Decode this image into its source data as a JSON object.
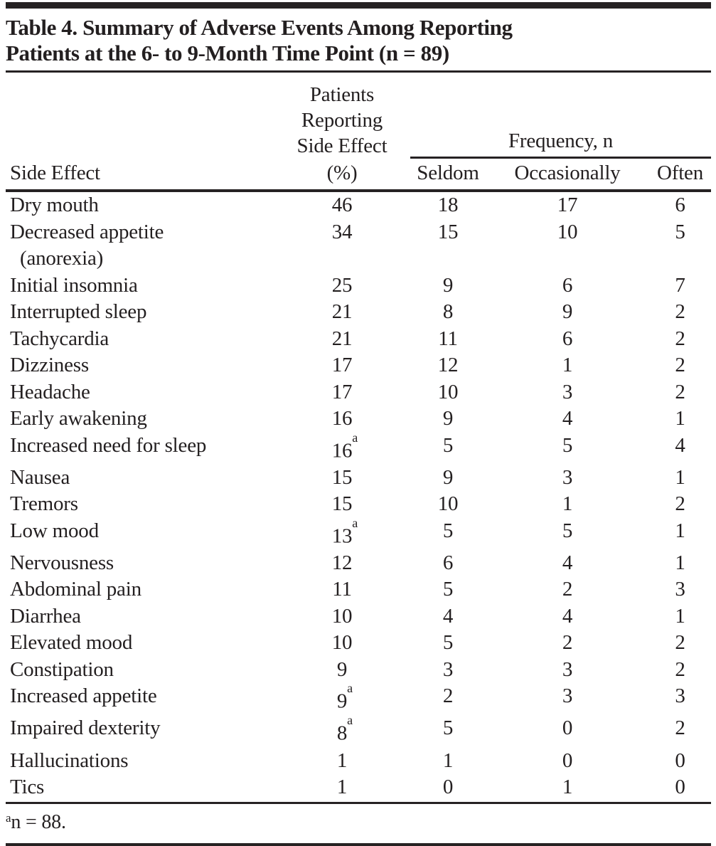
{
  "title": {
    "line1": "Table 4. Summary of Adverse Events Among Reporting",
    "line2": "Patients at the 6- to 9-Month Time Point (n = 89)"
  },
  "header": {
    "side_effect": "Side Effect",
    "patients_reporting": "Patients\nReporting\nSide Effect",
    "pct": "(%)",
    "frequency_spanner": "Frequency, n",
    "seldom": "Seldom",
    "occasionally": "Occasionally",
    "often": "Often"
  },
  "table": {
    "rows": [
      {
        "label": "Dry mouth",
        "pct": "46",
        "seldom": "18",
        "occasionally": "17",
        "often": "6"
      },
      {
        "label": "Decreased appetite",
        "label2": "(anorexia)",
        "pct": "34",
        "seldom": "15",
        "occasionally": "10",
        "often": "5"
      },
      {
        "label": "Initial insomnia",
        "pct": "25",
        "seldom": "9",
        "occasionally": "6",
        "often": "7"
      },
      {
        "label": "Interrupted sleep",
        "pct": "21",
        "seldom": "8",
        "occasionally": "9",
        "often": "2"
      },
      {
        "label": "Tachycardia",
        "pct": "21",
        "seldom": "11",
        "occasionally": "6",
        "often": "2"
      },
      {
        "label": "Dizziness",
        "pct": "17",
        "seldom": "12",
        "occasionally": "1",
        "often": "2"
      },
      {
        "label": "Headache",
        "pct": "17",
        "seldom": "10",
        "occasionally": "3",
        "often": "2"
      },
      {
        "label": "Early awakening",
        "pct": "16",
        "seldom": "9",
        "occasionally": "4",
        "often": "1"
      },
      {
        "label": "Increased need for sleep",
        "pct": "16",
        "sup": "a",
        "seldom": "5",
        "occasionally": "5",
        "often": "4"
      },
      {
        "label": "Nausea",
        "pct": "15",
        "seldom": "9",
        "occasionally": "3",
        "often": "1"
      },
      {
        "label": "Tremors",
        "pct": "15",
        "seldom": "10",
        "occasionally": "1",
        "often": "2"
      },
      {
        "label": "Low mood",
        "pct": "13",
        "sup": "a",
        "seldom": "5",
        "occasionally": "5",
        "often": "1"
      },
      {
        "label": "Nervousness",
        "pct": "12",
        "seldom": "6",
        "occasionally": "4",
        "often": "1"
      },
      {
        "label": "Abdominal pain",
        "pct": "11",
        "seldom": "5",
        "occasionally": "2",
        "often": "3"
      },
      {
        "label": "Diarrhea",
        "pct": "10",
        "seldom": "4",
        "occasionally": "4",
        "often": "1"
      },
      {
        "label": "Elevated mood",
        "pct": "10",
        "seldom": "5",
        "occasionally": "2",
        "often": "2"
      },
      {
        "label": "Constipation",
        "pct": "9",
        "seldom": "3",
        "occasionally": "3",
        "often": "2"
      },
      {
        "label": "Increased appetite",
        "pct": "9",
        "sup": "a",
        "seldom": "2",
        "occasionally": "3",
        "often": "3"
      },
      {
        "label": "Impaired dexterity",
        "pct": "8",
        "sup": "a",
        "seldom": "5",
        "occasionally": "0",
        "often": "2"
      },
      {
        "label": "Hallucinations",
        "pct": "1",
        "seldom": "1",
        "occasionally": "0",
        "often": "0"
      },
      {
        "label": "Tics",
        "pct": "1",
        "seldom": "0",
        "occasionally": "1",
        "often": "0"
      }
    ]
  },
  "footnote": {
    "marker": "a",
    "text": "n = 88."
  },
  "colors": {
    "ink": "#262223",
    "background": "#ffffff"
  }
}
